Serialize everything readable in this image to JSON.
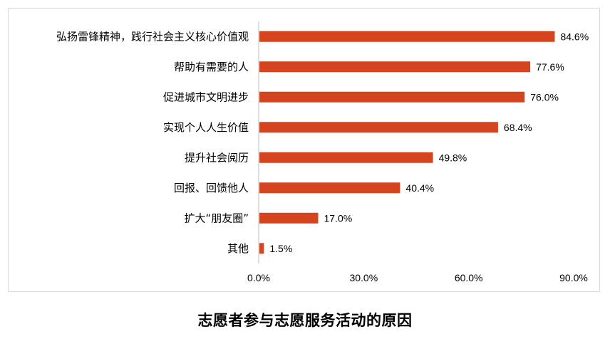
{
  "chart_data": {
    "type": "bar",
    "orientation": "horizontal",
    "title": "志愿者参与志愿服务活动的原因",
    "categories": [
      "弘扬雷锋精神，践行社会主义核心价值观",
      "帮助有需要的人",
      "促进城市文明进步",
      "实现个人人生价值",
      "提升社会阅历",
      "回报、回馈他人",
      "扩大“朋友圈”",
      "其他"
    ],
    "values": [
      84.6,
      77.6,
      76.0,
      68.4,
      49.8,
      40.4,
      17.0,
      1.5
    ],
    "value_labels": [
      "84.6%",
      "77.6%",
      "76.0%",
      "68.4%",
      "49.8%",
      "40.4%",
      "17.0%",
      "1.5%"
    ],
    "xlim": [
      0,
      90
    ],
    "xticks": [
      0,
      30,
      60,
      90
    ],
    "xtick_labels": [
      "0.0%",
      "30.0%",
      "60.0%",
      "90.0%"
    ],
    "grid": false,
    "legend": "none",
    "bar_color": "#d4451f"
  }
}
